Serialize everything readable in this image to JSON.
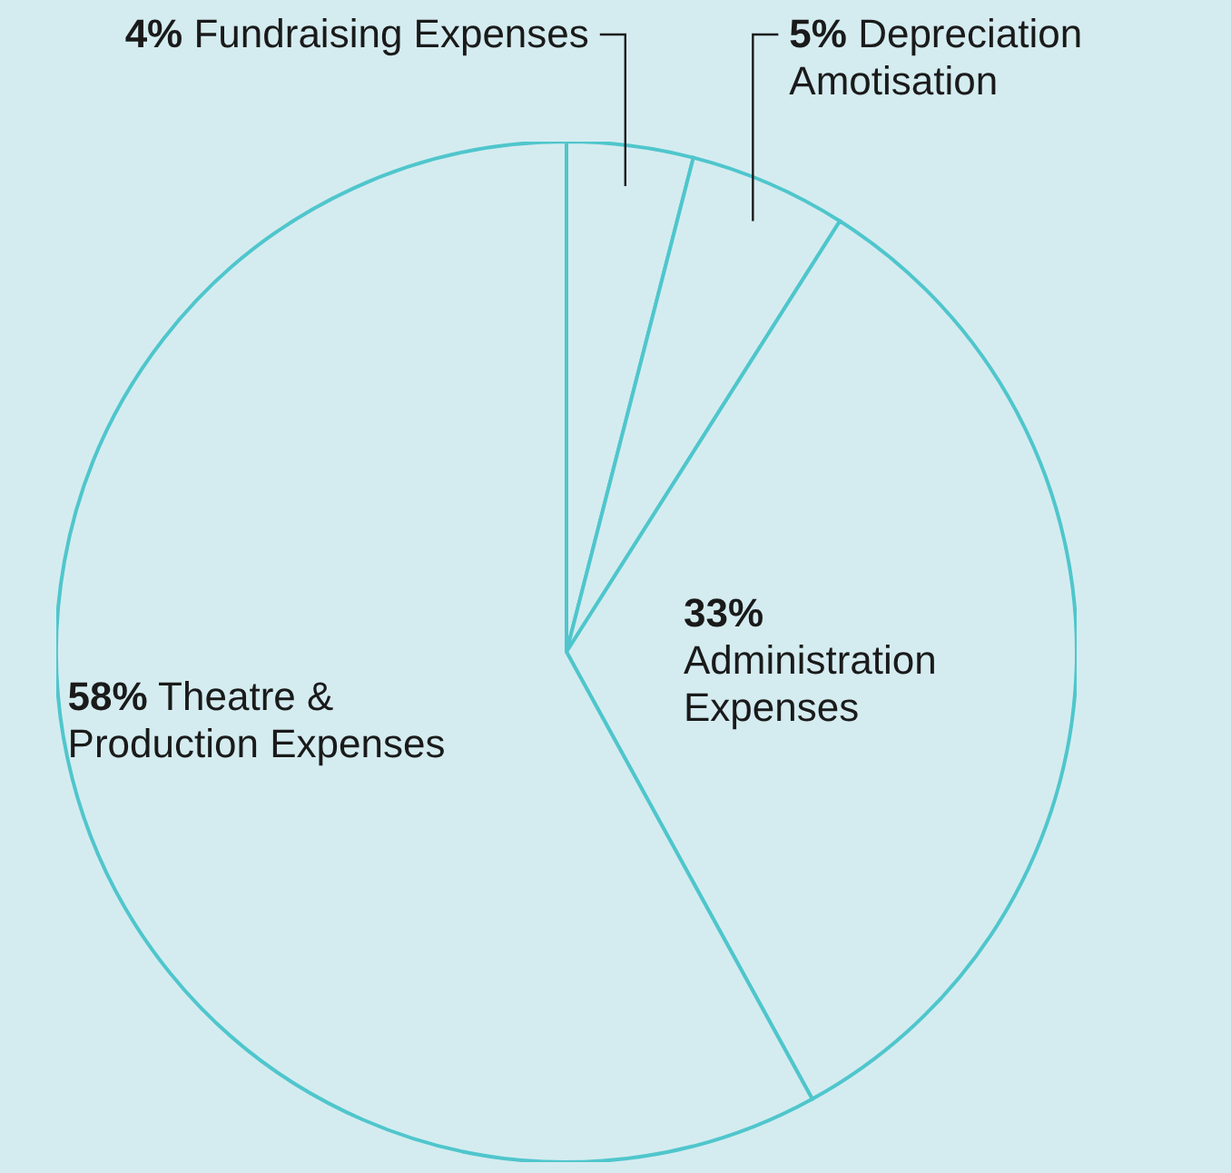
{
  "chart_data": {
    "type": "pie",
    "categories": [
      "Fundraising Expenses",
      "Depreciation Amotisation",
      "Administration Expenses",
      "Theatre & Production Expenses"
    ],
    "values": [
      4,
      5,
      33,
      58
    ],
    "value_labels": [
      "4%",
      "5%",
      "33%",
      "58%"
    ],
    "colors": [
      "#d4ecf0",
      "#d4ecf0",
      "#d4ecf0",
      "#d4ecf0"
    ]
  }
}
